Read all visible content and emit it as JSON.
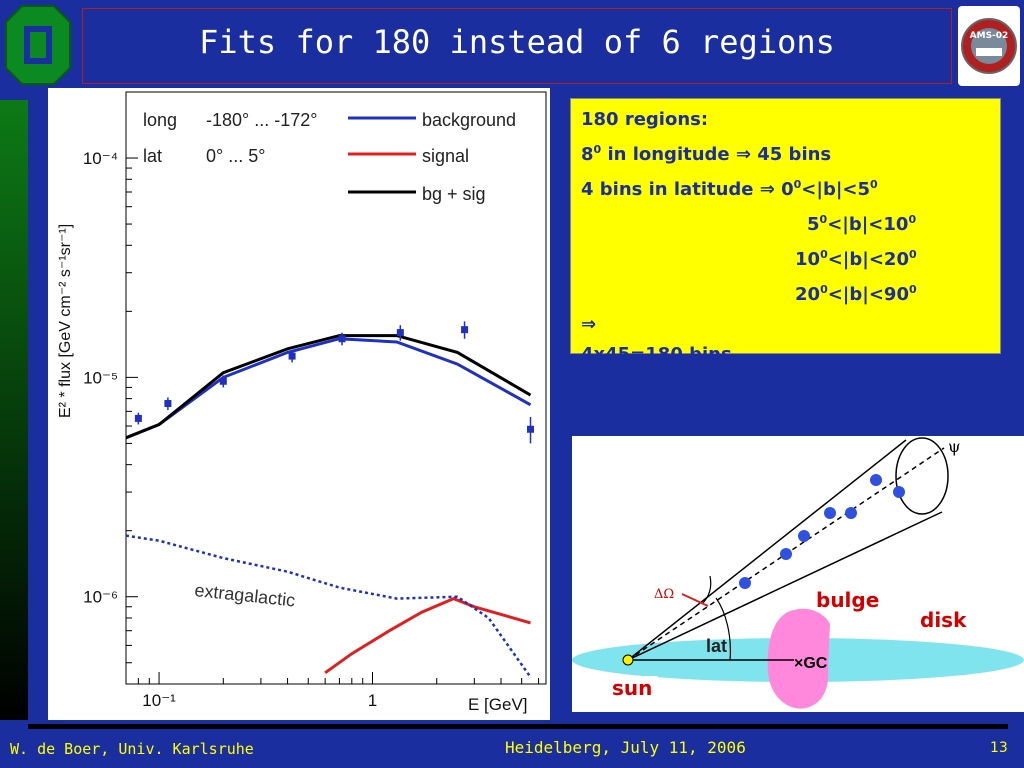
{
  "slide": {
    "title": "Fits for 180 instead of 6 regions",
    "footer_left": "W. de Boer, Univ. Karlsruhe",
    "footer_center": "Heidelberg, July 11, 2006",
    "page_number": "13",
    "logo_right_text": "AMS-02"
  },
  "info": {
    "line1": "180 regions:",
    "line2_pre": "8",
    "line2_sup": "0",
    "line2_post": " in longitude ⇒ 45 bins",
    "line3_pre": "4 bins in latitude ⇒ 0",
    "line3_sup1": "0",
    "line3_mid": "<|b|<5",
    "line3_sup2": "0",
    "line4_pre": "5",
    "line4_sup1": "0",
    "line4_mid": "<|b|<10",
    "line4_sup2": "0",
    "line5_pre": "10",
    "line5_sup1": "0",
    "line5_mid": "<|b|<20",
    "line5_sup2": "0",
    "line6_pre": "20",
    "line6_sup1": "0",
    "line6_mid": "<|b|<90",
    "line6_sup2": "0",
    "line7": "⇒",
    "line8": "4x45=180 bins"
  },
  "diagram": {
    "psi": "ψ",
    "delta_omega": "ΔΩ",
    "lat": "lat",
    "gc": "×GC",
    "bulge": "bulge",
    "disk": "disk",
    "sun": "sun"
  },
  "chart_data": {
    "type": "line",
    "xlabel": "E [GeV]",
    "ylabel": "E² * flux [GeV cm⁻² s⁻¹sr⁻¹]",
    "xscale": "log",
    "yscale": "log",
    "xlim": [
      0.07,
      6.5
    ],
    "ylim": [
      4e-07,
      0.0002
    ],
    "x_ticks": [
      {
        "value": 0.1,
        "label": "10⁻¹"
      },
      {
        "value": 1,
        "label": "1"
      }
    ],
    "y_ticks": [
      {
        "value": 1e-06,
        "label": "10⁻⁶"
      },
      {
        "value": 1e-05,
        "label": "10⁻⁵"
      },
      {
        "value": 0.0001,
        "label": "10⁻⁴"
      }
    ],
    "annotations": {
      "long_label": "long",
      "long_value": "-180° ... -172°",
      "lat_label": "lat",
      "lat_value": "0° ... 5°",
      "extragalactic": "extragalactic"
    },
    "legend_position": "top-right",
    "series": [
      {
        "name": "background",
        "color": "#2030c0",
        "style": "line",
        "x": [
          0.07,
          0.1,
          0.2,
          0.4,
          0.7,
          1.3,
          2.5,
          5.5
        ],
        "y": [
          5.3e-06,
          6.1e-06,
          1e-05,
          1.3e-05,
          1.5e-05,
          1.45e-05,
          1.15e-05,
          7.5e-06
        ]
      },
      {
        "name": "signal",
        "color": "#e02020",
        "style": "line",
        "x": [
          0.6,
          0.8,
          1.2,
          1.7,
          2.4,
          3.0,
          5.5
        ],
        "y": [
          4.5e-07,
          5.5e-07,
          7e-07,
          8.5e-07,
          9.8e-07,
          9e-07,
          7.6e-07
        ]
      },
      {
        "name": "bg + sig",
        "color": "#000000",
        "style": "line",
        "x": [
          0.07,
          0.1,
          0.2,
          0.4,
          0.7,
          1.3,
          2.5,
          5.5
        ],
        "y": [
          5.3e-06,
          6.1e-06,
          1.05e-05,
          1.35e-05,
          1.55e-05,
          1.55e-05,
          1.3e-05,
          8.3e-06
        ]
      },
      {
        "name": "extragalactic",
        "color": "#2030c0",
        "style": "dotted",
        "x": [
          0.07,
          0.1,
          0.2,
          0.4,
          0.7,
          1.3,
          2.5,
          3.5,
          5.5
        ],
        "y": [
          1.9e-06,
          1.8e-06,
          1.5e-06,
          1.3e-06,
          1.1e-06,
          9.8e-07,
          1e-06,
          8e-07,
          4.3e-07
        ]
      },
      {
        "name": "data",
        "color": "#2030c0",
        "style": "points",
        "x": [
          0.08,
          0.11,
          0.2,
          0.42,
          0.72,
          1.35,
          2.7,
          5.5
        ],
        "y": [
          6.5e-06,
          7.6e-06,
          9.6e-06,
          1.25e-05,
          1.5e-05,
          1.6e-05,
          1.65e-05,
          5.8e-06
        ],
        "err": [
          4e-07,
          5e-07,
          6e-07,
          8e-07,
          1e-06,
          1.3e-06,
          1.5e-06,
          8e-07
        ]
      }
    ]
  }
}
